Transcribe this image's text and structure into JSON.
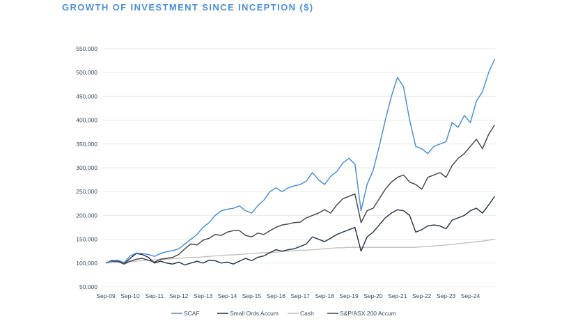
{
  "chart_data": {
    "type": "line",
    "title": "GROWTH OF INVESTMENT SINCE INCEPTION ($)",
    "xlabel": "",
    "ylabel": "",
    "ylim": [
      50000,
      550000
    ],
    "yticks": [
      "50,000",
      "100,000",
      "150,000",
      "200,000",
      "250,000",
      "300,000",
      "350,000",
      "400,000",
      "450,000",
      "500,000",
      "550,000"
    ],
    "xticks": [
      "Sep-09",
      "Sep-10",
      "Sep-11",
      "Sep-12",
      "Sep-13",
      "Sep-14",
      "Sep-15",
      "Sep-16",
      "Sep-17",
      "Sep-18",
      "Sep-19",
      "Sep-20",
      "Sep-21",
      "Sep-22",
      "Sep-23",
      "Sep-24"
    ],
    "grid": "horizontal",
    "legend_position": "bottom",
    "x": [
      "2009-09",
      "2009-12",
      "2010-03",
      "2010-06",
      "2010-09",
      "2010-12",
      "2011-03",
      "2011-06",
      "2011-09",
      "2011-12",
      "2012-03",
      "2012-06",
      "2012-09",
      "2012-12",
      "2013-03",
      "2013-06",
      "2013-09",
      "2013-12",
      "2014-03",
      "2014-06",
      "2014-09",
      "2014-12",
      "2015-03",
      "2015-06",
      "2015-09",
      "2015-12",
      "2016-03",
      "2016-06",
      "2016-09",
      "2016-12",
      "2017-03",
      "2017-06",
      "2017-09",
      "2017-12",
      "2018-03",
      "2018-06",
      "2018-09",
      "2018-12",
      "2019-03",
      "2019-06",
      "2019-09",
      "2019-12",
      "2020-03",
      "2020-06",
      "2020-09",
      "2020-12",
      "2021-03",
      "2021-06",
      "2021-09",
      "2021-12",
      "2022-03",
      "2022-06",
      "2022-09",
      "2022-12",
      "2023-03",
      "2023-06",
      "2023-09",
      "2023-12",
      "2024-03",
      "2024-06",
      "2024-09",
      "2024-12",
      "2025-03",
      "2025-06",
      "2025-09"
    ],
    "series": [
      {
        "name": "SCAF",
        "color": "#4a90d9",
        "values": [
          100000,
          105000,
          106000,
          101000,
          115000,
          121000,
          120000,
          118000,
          114000,
          120000,
          124000,
          126000,
          130000,
          140000,
          150000,
          160000,
          175000,
          185000,
          200000,
          210000,
          213000,
          215000,
          220000,
          210000,
          205000,
          220000,
          232000,
          250000,
          258000,
          250000,
          258000,
          262000,
          265000,
          272000,
          290000,
          275000,
          265000,
          282000,
          292000,
          310000,
          320000,
          308000,
          210000,
          265000,
          295000,
          345000,
          400000,
          450000,
          490000,
          470000,
          400000,
          345000,
          340000,
          330000,
          345000,
          350000,
          355000,
          395000,
          385000,
          410000,
          395000,
          440000,
          460000,
          500000,
          528000
        ]
      },
      {
        "name": "Small Ords Accum",
        "color": "#2b3b4c",
        "values": [
          100000,
          106000,
          105000,
          98000,
          110000,
          120000,
          118000,
          112000,
          100000,
          104000,
          100000,
          98000,
          102000,
          96000,
          100000,
          104000,
          100000,
          106000,
          105000,
          100000,
          102000,
          98000,
          104000,
          110000,
          105000,
          112000,
          115000,
          122000,
          128000,
          125000,
          128000,
          130000,
          135000,
          140000,
          155000,
          150000,
          145000,
          152000,
          160000,
          165000,
          170000,
          175000,
          125000,
          155000,
          165000,
          180000,
          195000,
          205000,
          212000,
          210000,
          200000,
          165000,
          170000,
          178000,
          180000,
          178000,
          172000,
          190000,
          195000,
          200000,
          210000,
          215000,
          205000,
          222000,
          240000
        ]
      },
      {
        "name": "Cash",
        "color": "#c4bcbc",
        "values": [
          100000,
          101000,
          102000,
          102000,
          103000,
          104000,
          105000,
          106000,
          107000,
          107000,
          108000,
          109000,
          110000,
          111000,
          112000,
          112000,
          113000,
          114000,
          115000,
          116000,
          117000,
          117000,
          118000,
          119000,
          120000,
          121000,
          122000,
          122000,
          123000,
          124000,
          125000,
          126000,
          127000,
          127000,
          128000,
          129000,
          130000,
          131000,
          132000,
          132000,
          133000,
          133000,
          133000,
          133000,
          133000,
          133000,
          133000,
          133000,
          133000,
          133000,
          133000,
          133000,
          134000,
          135000,
          136000,
          137000,
          138000,
          139000,
          141000,
          142000,
          143000,
          145000,
          146000,
          148000,
          150000
        ]
      },
      {
        "name": "S&P/ASX 200 Accum",
        "color": "#4a4a4a",
        "values": [
          100000,
          104000,
          103000,
          98000,
          104000,
          108000,
          110000,
          106000,
          102000,
          108000,
          110000,
          112000,
          118000,
          130000,
          140000,
          138000,
          148000,
          152000,
          160000,
          158000,
          165000,
          168000,
          168000,
          158000,
          155000,
          163000,
          160000,
          168000,
          175000,
          180000,
          182000,
          185000,
          186000,
          195000,
          200000,
          205000,
          212000,
          205000,
          222000,
          235000,
          240000,
          245000,
          185000,
          210000,
          215000,
          235000,
          255000,
          270000,
          280000,
          285000,
          270000,
          265000,
          255000,
          280000,
          285000,
          290000,
          280000,
          305000,
          320000,
          330000,
          345000,
          360000,
          340000,
          370000,
          390000
        ]
      }
    ]
  }
}
